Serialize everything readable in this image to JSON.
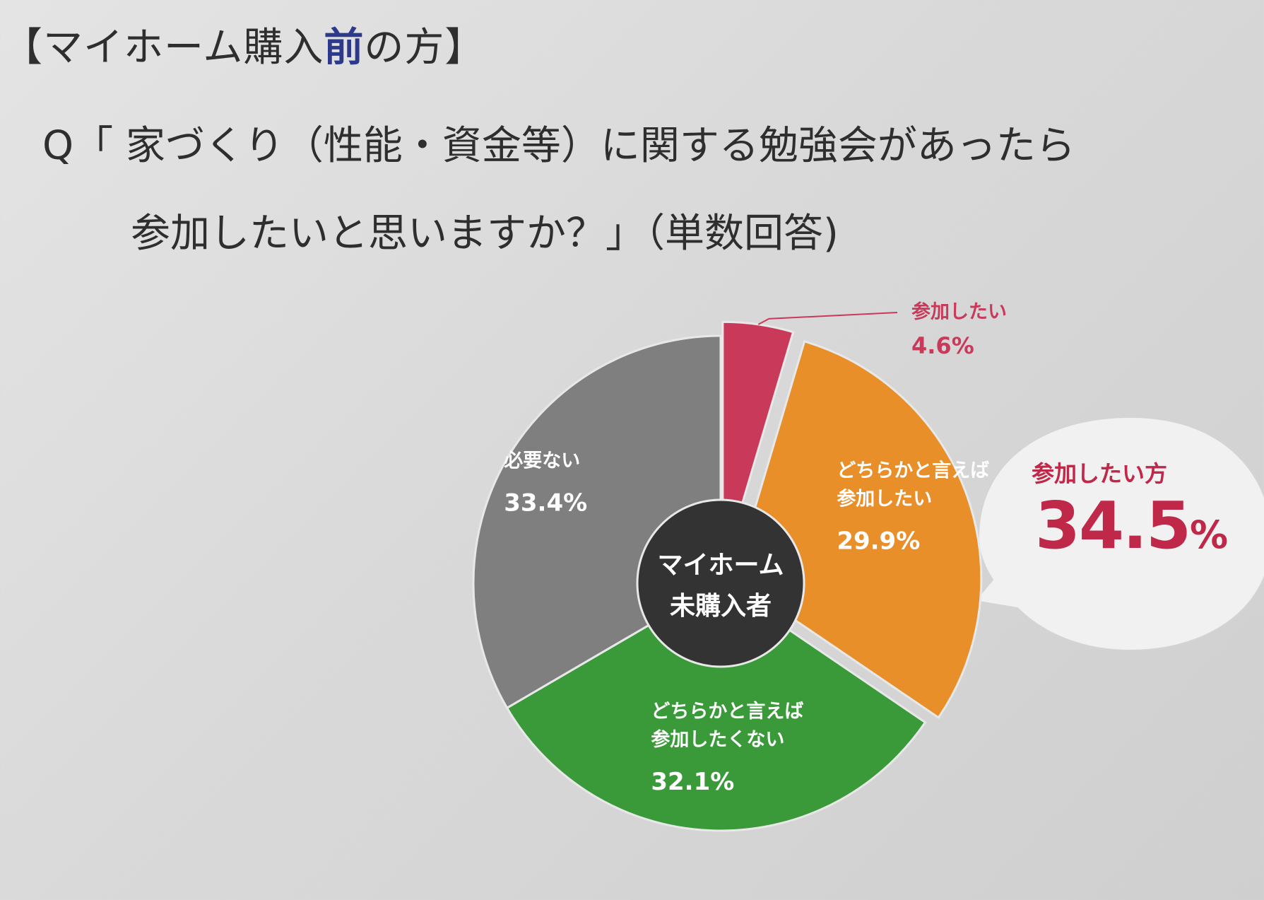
{
  "header": {
    "title_prefix": "【マイホーム購入",
    "title_accent": "前",
    "title_suffix": "の方】"
  },
  "question": {
    "line1": "Q「 家づくり（性能・資金等）に関する勉強会があったら",
    "line2": "参加したいと思いますか？」（単数回答)"
  },
  "callout": {
    "title": "参加したい方",
    "value": "34.5",
    "unit": "%"
  },
  "colors": {
    "want": "#c93a5a",
    "somewhat_want": "#e88f2a",
    "somewhat_not": "#3a9a3a",
    "not_needed": "#7f7f7f",
    "center": "#333333",
    "accent_text": "#c0284a"
  },
  "chart_data": {
    "type": "pie",
    "style": "donut",
    "center_label": [
      "マイホーム",
      "未購入者"
    ],
    "slices": [
      {
        "label_lines": [
          "参加したい"
        ],
        "value": 4.6,
        "value_label": "4.6%",
        "color": "#c93a5a",
        "exploded": true,
        "label_outside": true
      },
      {
        "label_lines": [
          "どちらかと言えば",
          "参加したい"
        ],
        "value": 29.9,
        "value_label": "29.9%",
        "color": "#e88f2a",
        "exploded": true,
        "label_outside": false
      },
      {
        "label_lines": [
          "どちらかと言えば",
          "参加したくない"
        ],
        "value": 32.1,
        "value_label": "32.1%",
        "color": "#3a9a3a",
        "exploded": false,
        "label_outside": false
      },
      {
        "label_lines": [
          "必要ない"
        ],
        "value": 33.4,
        "value_label": "33.4%",
        "color": "#7f7f7f",
        "exploded": false,
        "label_outside": false
      }
    ]
  }
}
